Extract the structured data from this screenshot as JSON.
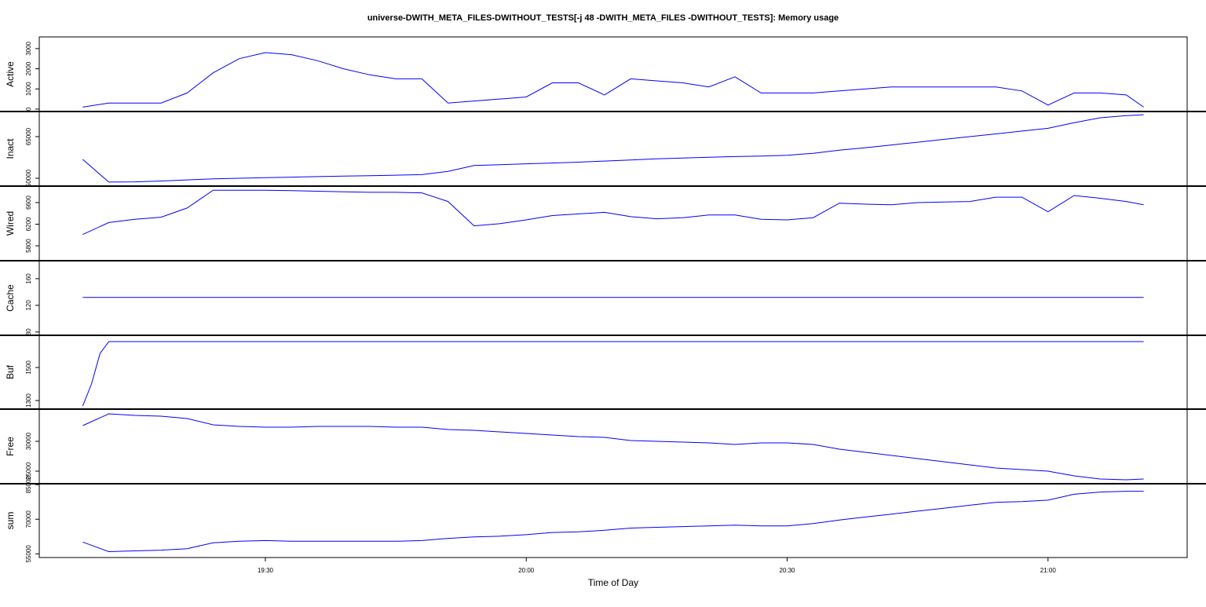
{
  "chart_data": [
    {
      "type": "line",
      "title": "universe-DWITH_META_FILES-DWITHOUT_TESTS[-j 48 -DWITH_META_FILES -DWITHOUT_TESTS]: Memory usage",
      "ylabel": "Active",
      "color": "#0000ff",
      "x": [
        1149,
        1152,
        1155,
        1158,
        1161,
        1164,
        1167,
        1170,
        1173,
        1176,
        1179,
        1182,
        1185,
        1188,
        1191,
        1194,
        1197,
        1200,
        1203,
        1206,
        1209,
        1212,
        1215,
        1218,
        1221,
        1224,
        1227,
        1230,
        1233,
        1236,
        1239,
        1242,
        1245,
        1248,
        1251,
        1254,
        1257,
        1260,
        1263,
        1266,
        1269,
        1271
      ],
      "values": [
        100,
        300,
        300,
        300,
        800,
        1800,
        2500,
        2800,
        2700,
        2400,
        2000,
        1700,
        1500,
        1500,
        300,
        400,
        500,
        600,
        1300,
        1300,
        700,
        1500,
        1400,
        1300,
        1100,
        1600,
        800,
        800,
        800,
        900,
        1000,
        1100,
        1100,
        1100,
        1100,
        1100,
        900,
        200,
        800,
        800,
        700,
        100
      ],
      "xlim": [
        1144,
        1276
      ],
      "ylim": [
        -120,
        3580
      ],
      "yticks": [
        0,
        1000,
        2000,
        3000
      ]
    },
    {
      "type": "line",
      "ylabel": "Inact",
      "color": "#0000ff",
      "x": [
        1149,
        1152,
        1155,
        1158,
        1161,
        1164,
        1167,
        1170,
        1173,
        1176,
        1179,
        1182,
        1185,
        1188,
        1191,
        1194,
        1197,
        1200,
        1203,
        1206,
        1209,
        1212,
        1215,
        1218,
        1221,
        1224,
        1227,
        1230,
        1233,
        1236,
        1239,
        1242,
        1245,
        1248,
        1251,
        1254,
        1257,
        1260,
        1263,
        1266,
        1269,
        1271
      ],
      "values": [
        56800,
        48600,
        48700,
        49000,
        49400,
        49800,
        50000,
        50200,
        50400,
        50600,
        50800,
        50900,
        51100,
        51300,
        52500,
        54600,
        54900,
        55200,
        55500,
        55800,
        56200,
        56600,
        57000,
        57300,
        57600,
        57800,
        58000,
        58300,
        59000,
        60100,
        61000,
        62000,
        63000,
        64000,
        65000,
        66000,
        67000,
        68000,
        70000,
        71800,
        72600,
        72900
      ],
      "xlim": [
        1144,
        1276
      ],
      "ylim": [
        47170,
        74060
      ],
      "yticks": [
        50000,
        65000
      ]
    },
    {
      "type": "line",
      "ylabel": "Wired",
      "color": "#0000ff",
      "x": [
        1149,
        1152,
        1155,
        1158,
        1161,
        1164,
        1167,
        1170,
        1173,
        1176,
        1179,
        1182,
        1185,
        1188,
        1191,
        1194,
        1197,
        1200,
        1203,
        1206,
        1209,
        1212,
        1215,
        1218,
        1221,
        1224,
        1227,
        1230,
        1233,
        1236,
        1239,
        1242,
        1245,
        1248,
        1251,
        1254,
        1257,
        1260,
        1263,
        1266,
        1269,
        1271
      ],
      "values": [
        6010,
        6230,
        6290,
        6330,
        6500,
        6830,
        6830,
        6830,
        6820,
        6810,
        6800,
        6790,
        6790,
        6780,
        6620,
        6170,
        6210,
        6280,
        6360,
        6390,
        6420,
        6340,
        6300,
        6320,
        6370,
        6370,
        6290,
        6280,
        6320,
        6590,
        6570,
        6560,
        6600,
        6610,
        6620,
        6700,
        6700,
        6430,
        6730,
        6680,
        6620,
        6560
      ],
      "xlim": [
        1144,
        1276
      ],
      "ylim": [
        5524,
        6905
      ],
      "yticks": [
        5800,
        6200,
        6600
      ]
    },
    {
      "type": "line",
      "ylabel": "Cache",
      "color": "#0000ff",
      "x": [
        1149,
        1271
      ],
      "values": [
        132,
        132
      ],
      "xlim": [
        1144,
        1276
      ],
      "ylim": [
        75,
        187
      ],
      "yticks": [
        80,
        120,
        160
      ]
    },
    {
      "type": "line",
      "ylabel": "Buf",
      "color": "#0000ff",
      "x": [
        1149,
        1150,
        1151,
        1152,
        1155,
        1158,
        1161,
        1164,
        1167,
        1170,
        1173,
        1176,
        1179,
        1182,
        1185,
        1188,
        1191,
        1194,
        1197,
        1200,
        1203,
        1206,
        1209,
        1212,
        1215,
        1218,
        1221,
        1224,
        1227,
        1230,
        1233,
        1236,
        1239,
        1242,
        1245,
        1248,
        1251,
        1254,
        1257,
        1260,
        1263,
        1266,
        1269,
        1271
      ],
      "values": [
        1267,
        1400,
        1586,
        1657,
        1657,
        1657,
        1657,
        1657,
        1657,
        1657,
        1657,
        1657,
        1657,
        1657,
        1657,
        1657,
        1657,
        1657,
        1657,
        1657,
        1657,
        1657,
        1657,
        1657,
        1657,
        1657,
        1657,
        1657,
        1657,
        1657,
        1657,
        1657,
        1657,
        1657,
        1657,
        1657,
        1657,
        1657,
        1657,
        1657,
        1657,
        1657,
        1657,
        1657
      ],
      "xlim": [
        1144,
        1276
      ],
      "ylim": [
        1248,
        1695
      ],
      "yticks": [
        1300,
        1500
      ]
    },
    {
      "type": "line",
      "ylabel": "Free",
      "color": "#0000ff",
      "x": [
        1149,
        1152,
        1155,
        1158,
        1161,
        1164,
        1167,
        1170,
        1173,
        1176,
        1179,
        1182,
        1185,
        1188,
        1191,
        1194,
        1197,
        1200,
        1203,
        1206,
        1209,
        1212,
        1215,
        1218,
        1221,
        1224,
        1227,
        1230,
        1233,
        1236,
        1239,
        1242,
        1245,
        1248,
        1251,
        1254,
        1257,
        1260,
        1263,
        1266,
        1269,
        1271
      ],
      "values": [
        32630,
        34610,
        34340,
        34210,
        33820,
        32760,
        32500,
        32370,
        32370,
        32500,
        32500,
        32500,
        32370,
        32370,
        31970,
        31840,
        31580,
        31320,
        31050,
        30790,
        30660,
        30130,
        30000,
        29870,
        29740,
        29470,
        29740,
        29740,
        29470,
        28680,
        28160,
        27630,
        27100,
        26580,
        26050,
        25530,
        25260,
        25000,
        24210,
        23680,
        23550,
        23680
      ],
      "xlim": [
        1144,
        1276
      ],
      "ylim": [
        22890,
        35400
      ],
      "yticks": [
        25000,
        30000
      ]
    },
    {
      "type": "line",
      "ylabel": "sum",
      "x_label": "Time of Day",
      "color": "#0000ff",
      "x": [
        1149,
        1152,
        1155,
        1158,
        1161,
        1164,
        1167,
        1170,
        1173,
        1176,
        1179,
        1182,
        1185,
        1188,
        1191,
        1194,
        1197,
        1200,
        1203,
        1206,
        1209,
        1212,
        1215,
        1218,
        1221,
        1224,
        1227,
        1230,
        1233,
        1236,
        1239,
        1242,
        1245,
        1248,
        1251,
        1254,
        1257,
        1260,
        1263,
        1266,
        1269,
        1271
      ],
      "values": [
        60110,
        55960,
        56280,
        56600,
        57240,
        59790,
        60430,
        60750,
        60430,
        60430,
        60430,
        60430,
        60430,
        60750,
        61700,
        62340,
        62660,
        63300,
        64260,
        64580,
        65210,
        66170,
        66490,
        66810,
        67130,
        67450,
        67130,
        67130,
        68090,
        69680,
        70960,
        72230,
        73510,
        74790,
        76060,
        77340,
        77660,
        78290,
        80850,
        81800,
        82120,
        82120
      ],
      "xlim": [
        1144,
        1276
      ],
      "ylim": [
        53400,
        85400
      ],
      "yticks": [
        55000,
        70000,
        85000
      ],
      "xticks": [
        {
          "value": 1170,
          "label": "19:30"
        },
        {
          "value": 1200,
          "label": "20:00"
        },
        {
          "value": 1230,
          "label": "20:30"
        },
        {
          "value": 1260,
          "label": "21:00"
        }
      ]
    }
  ]
}
